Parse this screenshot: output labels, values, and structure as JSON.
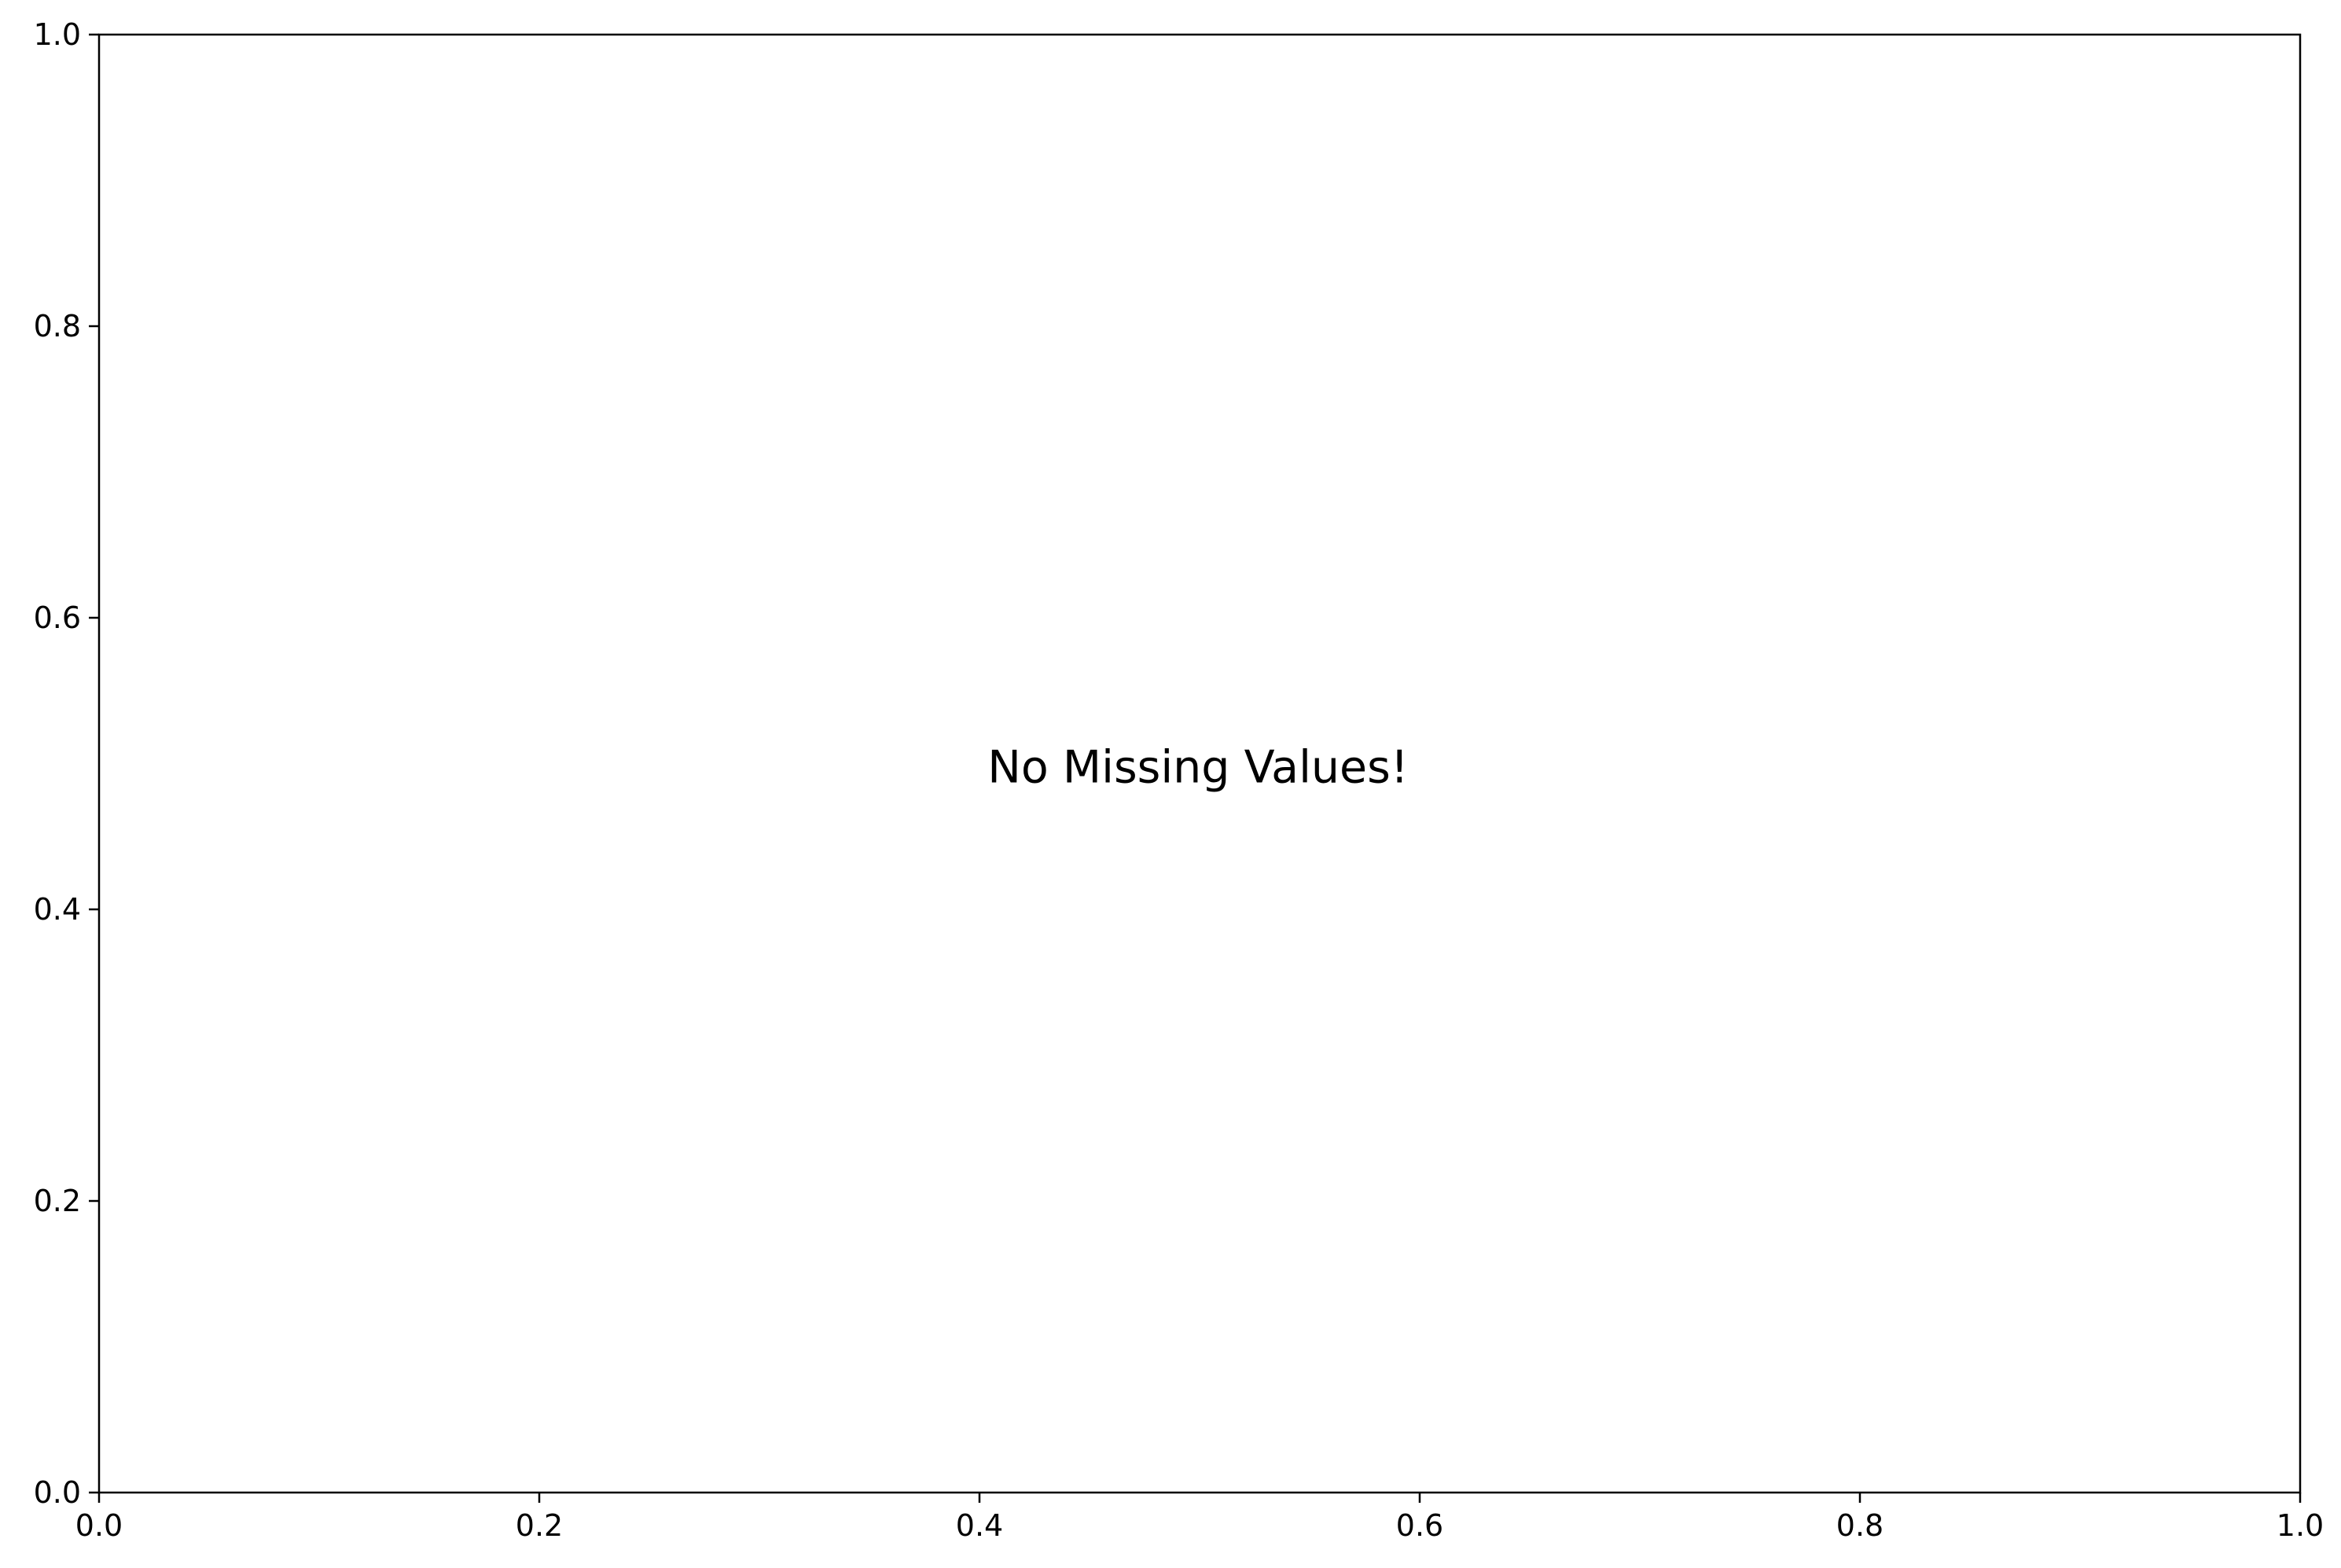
{
  "chart_data": {
    "type": "scatter",
    "title": "",
    "xlabel": "",
    "ylabel": "",
    "xlim": [
      0.0,
      1.0
    ],
    "ylim": [
      0.0,
      1.0
    ],
    "x_ticks": [
      "0.0",
      "0.2",
      "0.4",
      "0.6",
      "0.8",
      "1.0"
    ],
    "y_ticks": [
      "0.0",
      "0.2",
      "0.4",
      "0.6",
      "0.8",
      "1.0"
    ],
    "series": [],
    "grid": false,
    "legend": "none",
    "annotation": {
      "text": "No Missing Values!",
      "x": 0.5,
      "y": 0.5
    },
    "colors": {
      "axis": "#000000",
      "background": "#ffffff"
    }
  }
}
